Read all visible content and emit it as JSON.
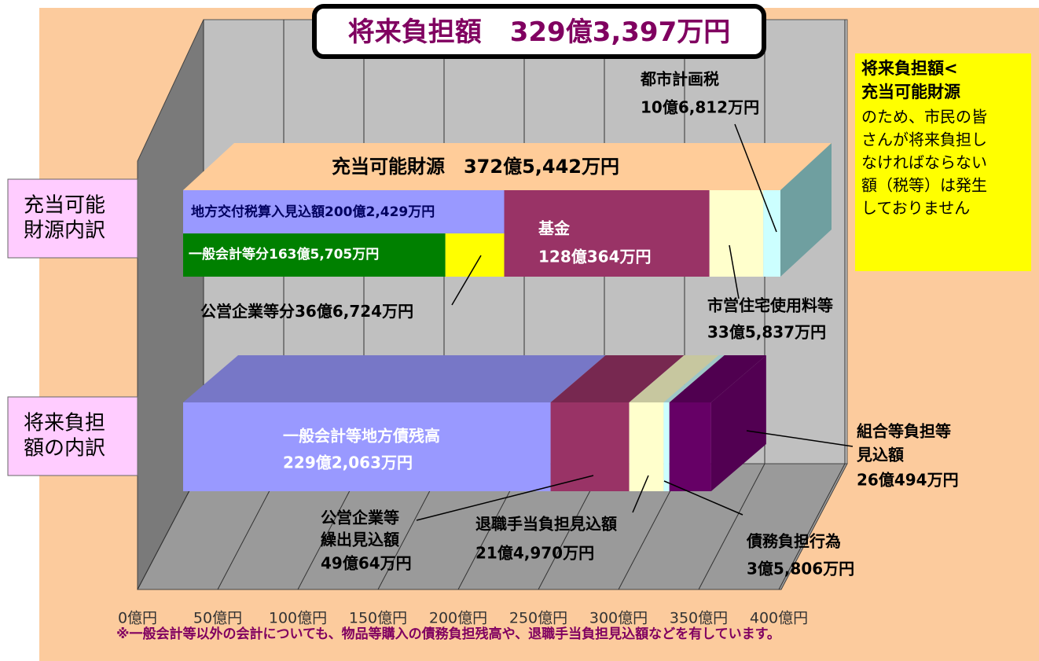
{
  "chart_data": {
    "type": "bar3d_stacked_horizontal",
    "title": {
      "name": "将来負担額",
      "value": 329.3397,
      "value_label": "329億3,397万円"
    },
    "xlim": [
      0,
      400
    ],
    "xticks": [
      {
        "value": 0,
        "label": "0億円"
      },
      {
        "value": 50,
        "label": "50億円"
      },
      {
        "value": 100,
        "label": "100億円"
      },
      {
        "value": 150,
        "label": "150億円"
      },
      {
        "value": 200,
        "label": "200億円"
      },
      {
        "value": 250,
        "label": "250億円"
      },
      {
        "value": 300,
        "label": "300億円"
      },
      {
        "value": 350,
        "label": "350億円"
      },
      {
        "value": 400,
        "label": "400億円"
      }
    ],
    "grid": true,
    "bars": [
      {
        "category": [
          "充当可能",
          "財源内訳"
        ],
        "total_name": "充当可能財源",
        "total": 372.5442,
        "total_label": "372億5,442万円",
        "top_color": "#ffcc99",
        "side_color": "#6f9fa0",
        "segments": [
          {
            "name": "地方交付税算入見込額",
            "value": 200.2429,
            "value_label": "200億2,429万円",
            "color": "#9999ff",
            "parts": [
              {
                "name": "一般会計等分",
                "value": 163.5705,
                "value_label": "163億5,705万円",
                "color": "#008000"
              },
              {
                "name": "公営企業等分",
                "value": 36.6724,
                "value_label": "36億6,724万円",
                "color": "#ffff00"
              }
            ]
          },
          {
            "name": "基金",
            "value": 128.0364,
            "value_label": "128億364万円",
            "color": "#993366"
          },
          {
            "name": "市営住宅使用料等",
            "value": 33.5837,
            "value_label": "33億5,837万円",
            "color": "#ffffcc"
          },
          {
            "name": "都市計画税",
            "value": 10.6812,
            "value_label": "10億6,812万円",
            "color": "#ccffff"
          }
        ]
      },
      {
        "category": [
          "将来負担",
          "額の内訳"
        ],
        "segments": [
          {
            "name": "一般会計等地方債残高",
            "value": 229.2063,
            "value_label": "229億2,063万円",
            "color": "#9999ff"
          },
          {
            "name": [
              "公営企業等",
              "繰出見込額"
            ],
            "value": 49.0064,
            "value_label": "49億64万円",
            "color": "#993366"
          },
          {
            "name": "退職手当負担見込額",
            "value": 21.497,
            "value_label": "21億4,970万円",
            "color": "#ffffcc"
          },
          {
            "name": "債務負担行為",
            "value": 3.5806,
            "value_label": "3億5,806万円",
            "color": "#ccffff"
          },
          {
            "name": [
              "組合等負担等",
              "見込額"
            ],
            "value": 26.0494,
            "value_label": "26億494万円",
            "color": "#660066"
          }
        ]
      }
    ],
    "note": {
      "head": [
        "将来負担額<",
        "充当可能財源"
      ],
      "body": [
        "のため、市民の皆",
        "さんが将来負担し",
        "なければならない",
        "額（税等）は発生",
        "しておりません"
      ]
    },
    "footnote": "※一般会計等以外の会計についても、物品等購入の債務負担残高や、退職手当負担見込額などを有しています。"
  }
}
